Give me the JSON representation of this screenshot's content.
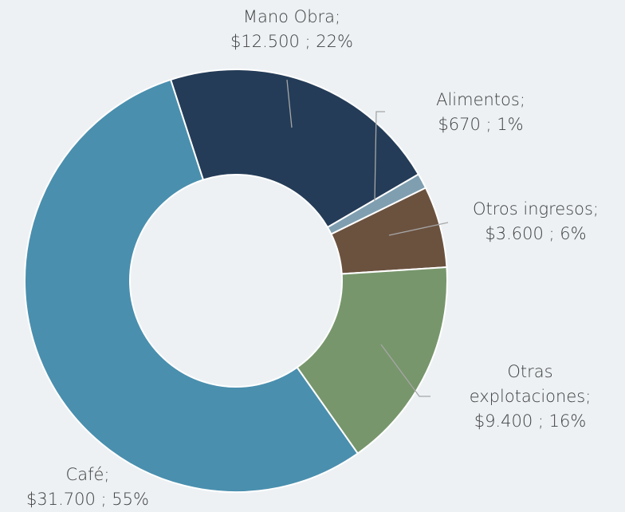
{
  "chart_data": {
    "type": "donut",
    "categories": [
      "Mano Obra;",
      "Alimentos;",
      "Otros ingresos;",
      "Otras explotaciones;",
      "Café;"
    ],
    "values": [
      12500,
      670,
      3600,
      9400,
      31700
    ],
    "value_labels": [
      "$12.500 ; 22%",
      "$670 ; 1%",
      "$3.600 ; 6%",
      "$9.400 ; 16%",
      "$31.700 ; 55%"
    ],
    "colors": [
      "#243c57",
      "#7f9fb0",
      "#6b523f",
      "#77966c",
      "#4a8fae"
    ]
  }
}
